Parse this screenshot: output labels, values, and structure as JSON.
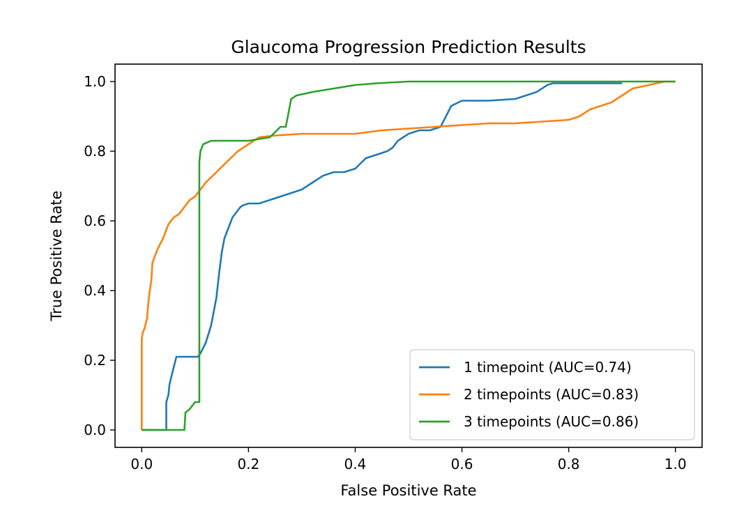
{
  "chart_data": {
    "type": "line",
    "title": "Glaucoma Progression Prediction Results",
    "xlabel": "False Positive Rate",
    "ylabel": "True Positive Rate",
    "xlim": [
      -0.05,
      1.05
    ],
    "ylim": [
      -0.05,
      1.05
    ],
    "xticks": [
      0.0,
      0.2,
      0.4,
      0.6,
      0.8,
      1.0
    ],
    "yticks": [
      0.0,
      0.2,
      0.4,
      0.6,
      0.8,
      1.0
    ],
    "xtick_labels": [
      "0.0",
      "0.2",
      "0.4",
      "0.6",
      "0.8",
      "1.0"
    ],
    "ytick_labels": [
      "0.0",
      "0.2",
      "0.4",
      "0.6",
      "0.8",
      "1.0"
    ],
    "grid": false,
    "legend_position": "lower right",
    "series": [
      {
        "name": "1 timepoint (AUC=0.74)",
        "color": "#1f77b4",
        "x": [
          0.0,
          0.046,
          0.046,
          0.05,
          0.052,
          0.055,
          0.06,
          0.065,
          0.07,
          0.105,
          0.11,
          0.12,
          0.13,
          0.14,
          0.145,
          0.15,
          0.155,
          0.16,
          0.165,
          0.17,
          0.175,
          0.18,
          0.185,
          0.19,
          0.2,
          0.21,
          0.22,
          0.24,
          0.26,
          0.3,
          0.32,
          0.34,
          0.36,
          0.38,
          0.4,
          0.42,
          0.44,
          0.46,
          0.47,
          0.48,
          0.5,
          0.52,
          0.54,
          0.56,
          0.57,
          0.58,
          0.6,
          0.65,
          0.7,
          0.74,
          0.76,
          0.77,
          0.8,
          0.9
        ],
        "y": [
          0.0,
          0.0,
          0.08,
          0.1,
          0.13,
          0.15,
          0.18,
          0.21,
          0.21,
          0.21,
          0.22,
          0.25,
          0.3,
          0.38,
          0.45,
          0.51,
          0.55,
          0.57,
          0.59,
          0.61,
          0.62,
          0.63,
          0.64,
          0.645,
          0.65,
          0.65,
          0.65,
          0.66,
          0.67,
          0.69,
          0.71,
          0.73,
          0.74,
          0.74,
          0.75,
          0.78,
          0.79,
          0.8,
          0.81,
          0.83,
          0.85,
          0.86,
          0.86,
          0.87,
          0.9,
          0.93,
          0.945,
          0.945,
          0.95,
          0.97,
          0.99,
          0.995,
          0.995,
          0.995
        ]
      },
      {
        "name": "2 timepoints (AUC=0.83)",
        "color": "#ff7f0e",
        "x": [
          0.0,
          0.0,
          0.002,
          0.005,
          0.01,
          0.012,
          0.015,
          0.018,
          0.02,
          0.025,
          0.03,
          0.04,
          0.05,
          0.06,
          0.07,
          0.08,
          0.09,
          0.1,
          0.11,
          0.12,
          0.14,
          0.16,
          0.18,
          0.2,
          0.22,
          0.25,
          0.3,
          0.4,
          0.45,
          0.5,
          0.55,
          0.6,
          0.65,
          0.7,
          0.75,
          0.8,
          0.82,
          0.84,
          0.86,
          0.88,
          0.9,
          0.92,
          0.95,
          0.98,
          1.0
        ],
        "y": [
          0.0,
          0.26,
          0.28,
          0.29,
          0.32,
          0.36,
          0.4,
          0.43,
          0.48,
          0.5,
          0.52,
          0.55,
          0.59,
          0.61,
          0.62,
          0.64,
          0.66,
          0.67,
          0.69,
          0.71,
          0.74,
          0.77,
          0.8,
          0.82,
          0.84,
          0.845,
          0.85,
          0.85,
          0.86,
          0.865,
          0.87,
          0.875,
          0.88,
          0.88,
          0.885,
          0.89,
          0.9,
          0.92,
          0.93,
          0.94,
          0.96,
          0.98,
          0.99,
          1.0,
          1.0
        ]
      },
      {
        "name": "3 timepoints (AUC=0.86)",
        "color": "#2ca02c",
        "x": [
          0.0,
          0.08,
          0.082,
          0.09,
          0.1,
          0.108,
          0.108,
          0.11,
          0.115,
          0.13,
          0.2,
          0.24,
          0.26,
          0.27,
          0.275,
          0.28,
          0.29,
          0.32,
          0.36,
          0.4,
          0.44,
          0.5,
          0.6,
          0.7,
          1.0
        ],
        "y": [
          0.0,
          0.0,
          0.05,
          0.06,
          0.08,
          0.08,
          0.77,
          0.8,
          0.82,
          0.83,
          0.83,
          0.84,
          0.87,
          0.87,
          0.91,
          0.95,
          0.96,
          0.97,
          0.98,
          0.99,
          0.995,
          1.0,
          1.0,
          1.0,
          1.0
        ]
      }
    ]
  }
}
